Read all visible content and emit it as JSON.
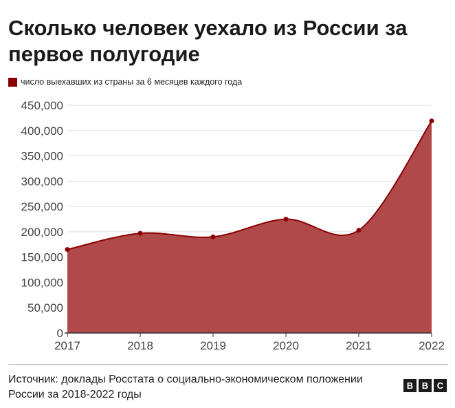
{
  "title": "Сколько человек уехало из России за первое полугодие",
  "legend_label": "число выехавших из страны за 6 месяцев каждого года",
  "source": "Источник: доклады Росстата о социально-экономическом положении России за 2018-2022 годы",
  "logo": {
    "letters": [
      "B",
      "B",
      "C"
    ]
  },
  "colors": {
    "series": "#8b0000",
    "fill": "#b04a4a",
    "grid": "#dddddd",
    "axis": "#444444"
  },
  "chart_data": {
    "type": "area",
    "x": [
      "2017",
      "2018",
      "2019",
      "2020",
      "2021",
      "2022"
    ],
    "series": [
      {
        "name": "число выехавших из страны за 6 месяцев каждого года",
        "values": [
          165000,
          197000,
          190000,
          225000,
          203000,
          419000
        ]
      }
    ],
    "ylim": [
      0,
      450000
    ],
    "yticks": [
      "0",
      "50,000",
      "100,000",
      "150,000",
      "200,000",
      "250,000",
      "300,000",
      "350,000",
      "400,000",
      "450,000"
    ],
    "grid": true,
    "legend": "top-left"
  }
}
